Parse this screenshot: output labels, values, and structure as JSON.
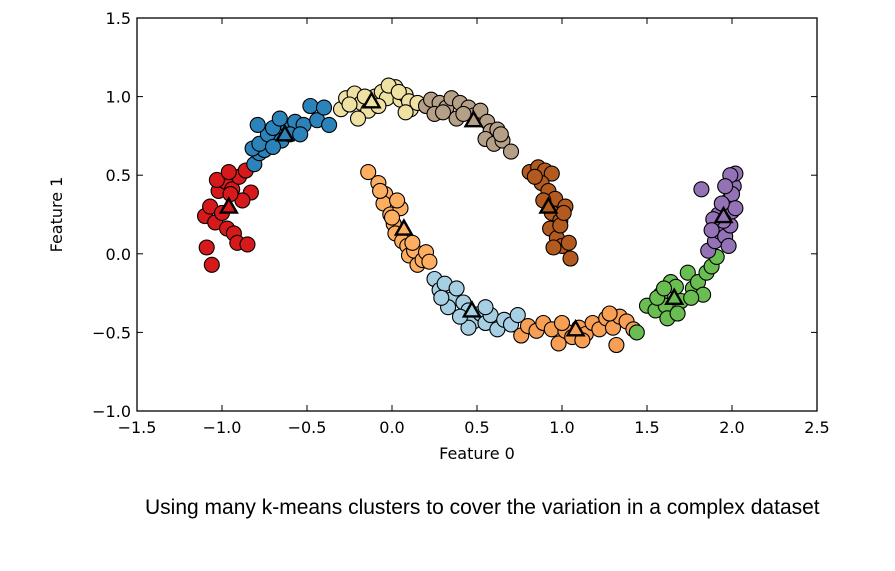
{
  "caption": "Using many k-means clusters to cover the variation in a complex dataset",
  "chart_data": {
    "type": "scatter",
    "xlabel": "Feature 0",
    "ylabel": "Feature 1",
    "xlim": [
      -1.5,
      2.5
    ],
    "ylim": [
      -1.0,
      1.5
    ],
    "xticks": [
      "−1.5",
      "−1.0",
      "−0.5",
      "0.0",
      "0.5",
      "1.0",
      "1.5",
      "2.0",
      "2.5"
    ],
    "yticks": [
      "−1.0",
      "−0.5",
      "0.0",
      "0.5",
      "1.0",
      "1.5"
    ],
    "xtick_values": [
      -1.5,
      -1.0,
      -0.5,
      0.0,
      0.5,
      1.0,
      1.5,
      2.0,
      2.5
    ],
    "ytick_values": [
      -1.0,
      -0.5,
      0.0,
      0.5,
      1.0,
      1.5
    ],
    "grid": false,
    "clusters": [
      {
        "color": "#d7191c",
        "center": [
          -0.96,
          0.3
        ],
        "points": [
          [
            -1.09,
            0.04
          ],
          [
            -1.06,
            -0.07
          ],
          [
            -1.1,
            0.24
          ],
          [
            -1.04,
            0.2
          ],
          [
            -1.07,
            0.3
          ],
          [
            -1.0,
            0.26
          ],
          [
            -0.97,
            0.16
          ],
          [
            -0.93,
            0.13
          ],
          [
            -1.02,
            0.4
          ],
          [
            -0.98,
            0.46
          ],
          [
            -0.94,
            0.41
          ],
          [
            -0.9,
            0.49
          ],
          [
            -0.86,
            0.53
          ],
          [
            -0.83,
            0.39
          ],
          [
            -0.88,
            0.34
          ],
          [
            -0.95,
            0.38
          ],
          [
            -0.91,
            0.07
          ],
          [
            -0.85,
            0.06
          ],
          [
            -1.03,
            0.47
          ],
          [
            -0.96,
            0.52
          ]
        ]
      },
      {
        "color": "#2b83ba",
        "center": [
          -0.63,
          0.76
        ],
        "points": [
          [
            -0.81,
            0.57
          ],
          [
            -0.78,
            0.64
          ],
          [
            -0.75,
            0.66
          ],
          [
            -0.82,
            0.67
          ],
          [
            -0.78,
            0.7
          ],
          [
            -0.73,
            0.76
          ],
          [
            -0.7,
            0.8
          ],
          [
            -0.65,
            0.72
          ],
          [
            -0.61,
            0.8
          ],
          [
            -0.57,
            0.84
          ],
          [
            -0.52,
            0.82
          ],
          [
            -0.48,
            0.94
          ],
          [
            -0.44,
            0.85
          ],
          [
            -0.4,
            0.93
          ],
          [
            -0.37,
            0.82
          ],
          [
            -0.7,
            0.68
          ],
          [
            -0.79,
            0.82
          ],
          [
            -0.66,
            0.86
          ],
          [
            -0.6,
            0.76
          ],
          [
            -0.54,
            0.76
          ]
        ]
      },
      {
        "color": "#efe1a2",
        "center": [
          -0.12,
          0.97
        ],
        "points": [
          [
            -0.3,
            0.92
          ],
          [
            -0.27,
            0.99
          ],
          [
            -0.22,
            1.02
          ],
          [
            -0.18,
            0.96
          ],
          [
            -0.14,
            0.91
          ],
          [
            -0.1,
            1.0
          ],
          [
            -0.06,
            1.03
          ],
          [
            -0.03,
            0.99
          ],
          [
            0.02,
            1.06
          ],
          [
            0.05,
            0.98
          ],
          [
            0.08,
            1.01
          ],
          [
            0.11,
            0.92
          ],
          [
            -0.2,
            0.86
          ],
          [
            -0.25,
            0.95
          ],
          [
            -0.02,
            1.07
          ],
          [
            0.04,
            1.03
          ],
          [
            0.1,
            0.97
          ],
          [
            -0.08,
            0.94
          ],
          [
            0.15,
            0.96
          ],
          [
            0.08,
            0.9
          ],
          [
            -0.16,
            1.0
          ]
        ]
      },
      {
        "color": "#b59f86",
        "center": [
          0.48,
          0.85
        ],
        "points": [
          [
            0.2,
            0.94
          ],
          [
            0.23,
            0.98
          ],
          [
            0.28,
            0.96
          ],
          [
            0.32,
            0.93
          ],
          [
            0.35,
            0.99
          ],
          [
            0.4,
            0.96
          ],
          [
            0.45,
            0.93
          ],
          [
            0.48,
            0.88
          ],
          [
            0.52,
            0.91
          ],
          [
            0.56,
            0.84
          ],
          [
            0.58,
            0.78
          ],
          [
            0.62,
            0.79
          ],
          [
            0.55,
            0.73
          ],
          [
            0.6,
            0.7
          ],
          [
            0.65,
            0.72
          ],
          [
            0.7,
            0.65
          ],
          [
            0.25,
            0.89
          ],
          [
            0.38,
            0.86
          ],
          [
            0.42,
            0.89
          ],
          [
            0.64,
            0.76
          ],
          [
            0.3,
            0.9
          ]
        ]
      },
      {
        "color": "#b35a1f",
        "center": [
          0.92,
          0.3
        ],
        "points": [
          [
            0.81,
            0.52
          ],
          [
            0.86,
            0.55
          ],
          [
            0.9,
            0.53
          ],
          [
            0.94,
            0.51
          ],
          [
            0.88,
            0.45
          ],
          [
            0.92,
            0.4
          ],
          [
            0.96,
            0.35
          ],
          [
            0.89,
            0.34
          ],
          [
            0.94,
            0.26
          ],
          [
            0.99,
            0.21
          ],
          [
            1.02,
            0.3
          ],
          [
            0.93,
            0.16
          ],
          [
            0.97,
            0.1
          ],
          [
            1.0,
            0.05
          ],
          [
            1.04,
            0.07
          ],
          [
            1.05,
            -0.03
          ],
          [
            0.95,
            0.04
          ],
          [
            0.99,
            0.18
          ],
          [
            1.01,
            0.26
          ],
          [
            0.84,
            0.49
          ]
        ]
      },
      {
        "color": "#fdae61",
        "center": [
          0.07,
          0.16
        ],
        "points": [
          [
            -0.14,
            0.52
          ],
          [
            -0.08,
            0.45
          ],
          [
            -0.04,
            0.38
          ],
          [
            -0.05,
            0.32
          ],
          [
            -0.01,
            0.25
          ],
          [
            0.01,
            0.19
          ],
          [
            0.05,
            0.29
          ],
          [
            0.02,
            0.13
          ],
          [
            0.06,
            0.08
          ],
          [
            0.09,
            0.05
          ],
          [
            0.1,
            -0.01
          ],
          [
            0.13,
            0.02
          ],
          [
            0.15,
            -0.07
          ],
          [
            0.18,
            -0.04
          ],
          [
            0.2,
            0.01
          ],
          [
            0.22,
            -0.05
          ],
          [
            0.03,
            0.34
          ],
          [
            -0.07,
            0.4
          ],
          [
            0.0,
            0.23
          ],
          [
            0.12,
            0.07
          ]
        ]
      },
      {
        "color": "#a6cfe3",
        "center": [
          0.47,
          -0.36
        ],
        "points": [
          [
            0.25,
            -0.16
          ],
          [
            0.28,
            -0.23
          ],
          [
            0.31,
            -0.19
          ],
          [
            0.35,
            -0.29
          ],
          [
            0.38,
            -0.22
          ],
          [
            0.42,
            -0.31
          ],
          [
            0.45,
            -0.36
          ],
          [
            0.48,
            -0.43
          ],
          [
            0.52,
            -0.38
          ],
          [
            0.55,
            -0.44
          ],
          [
            0.58,
            -0.39
          ],
          [
            0.62,
            -0.48
          ],
          [
            0.66,
            -0.42
          ],
          [
            0.7,
            -0.45
          ],
          [
            0.74,
            -0.39
          ],
          [
            0.45,
            -0.47
          ],
          [
            0.33,
            -0.34
          ],
          [
            0.4,
            -0.4
          ],
          [
            0.55,
            -0.34
          ],
          [
            0.29,
            -0.28
          ]
        ]
      },
      {
        "color": "#f89f56",
        "center": [
          1.08,
          -0.48
        ],
        "points": [
          [
            0.76,
            -0.52
          ],
          [
            0.8,
            -0.46
          ],
          [
            0.85,
            -0.49
          ],
          [
            0.89,
            -0.44
          ],
          [
            0.94,
            -0.48
          ],
          [
            0.98,
            -0.57
          ],
          [
            1.02,
            -0.49
          ],
          [
            1.06,
            -0.53
          ],
          [
            1.1,
            -0.47
          ],
          [
            1.14,
            -0.51
          ],
          [
            1.18,
            -0.44
          ],
          [
            1.22,
            -0.48
          ],
          [
            1.26,
            -0.41
          ],
          [
            1.3,
            -0.47
          ],
          [
            1.34,
            -0.4
          ],
          [
            1.38,
            -0.43
          ],
          [
            1.32,
            -0.58
          ],
          [
            1.42,
            -0.48
          ],
          [
            1.0,
            -0.44
          ],
          [
            1.12,
            -0.55
          ],
          [
            1.28,
            -0.38
          ]
        ]
      },
      {
        "color": "#6abd51",
        "center": [
          1.66,
          -0.28
        ],
        "points": [
          [
            1.44,
            -0.5
          ],
          [
            1.5,
            -0.33
          ],
          [
            1.55,
            -0.36
          ],
          [
            1.58,
            -0.26
          ],
          [
            1.61,
            -0.33
          ],
          [
            1.64,
            -0.18
          ],
          [
            1.67,
            -0.21
          ],
          [
            1.7,
            -0.3
          ],
          [
            1.74,
            -0.12
          ],
          [
            1.77,
            -0.22
          ],
          [
            1.8,
            -0.18
          ],
          [
            1.83,
            -0.26
          ],
          [
            1.85,
            -0.12
          ],
          [
            1.88,
            -0.08
          ],
          [
            1.91,
            -0.02
          ],
          [
            1.62,
            -0.41
          ],
          [
            1.56,
            -0.28
          ],
          [
            1.68,
            -0.38
          ],
          [
            1.76,
            -0.28
          ],
          [
            1.6,
            -0.22
          ]
        ]
      },
      {
        "color": "#9372b6",
        "center": [
          1.95,
          0.24
        ],
        "points": [
          [
            1.82,
            0.41
          ],
          [
            1.86,
            0.02
          ],
          [
            1.9,
            0.08
          ],
          [
            1.93,
            0.14
          ],
          [
            1.96,
            0.11
          ],
          [
            1.99,
            0.18
          ],
          [
            2.0,
            0.27
          ],
          [
            1.98,
            0.34
          ],
          [
            2.01,
            0.43
          ],
          [
            2.02,
            0.51
          ],
          [
            1.99,
            0.5
          ],
          [
            2.0,
            0.38
          ],
          [
            1.95,
            0.21
          ],
          [
            1.92,
            0.25
          ],
          [
            1.89,
            0.22
          ],
          [
            1.98,
            0.05
          ],
          [
            1.96,
            0.43
          ],
          [
            2.02,
            0.29
          ],
          [
            1.88,
            0.15
          ],
          [
            1.94,
            0.32
          ]
        ]
      }
    ]
  }
}
